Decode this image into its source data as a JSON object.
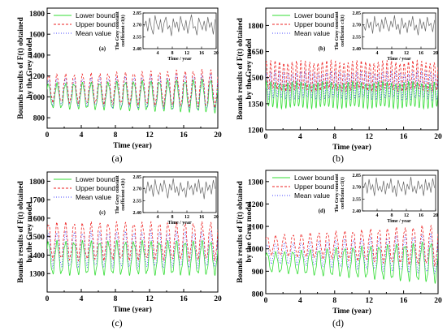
{
  "chart_data": [
    {
      "type": "line",
      "panel_caption": "(a)",
      "panel_tag": "(a)",
      "ylabel_lines": [
        "Bounds results of F(t) obtained",
        "by the Grey model"
      ],
      "xlabel": "Time (year)",
      "xlim": [
        0,
        20
      ],
      "xticks": [
        "0",
        "4",
        "8",
        "12",
        "16",
        "20"
      ],
      "ylim": [
        700,
        1850
      ],
      "yticks": [
        "800",
        "1000",
        "1200",
        "1400",
        "1600",
        "1800"
      ],
      "grid": false,
      "legend_position": "top-left",
      "periods": 20,
      "series": [
        {
          "name": "Lower bound",
          "color": "#33dd33",
          "dash": "",
          "baseline": 1010,
          "amplitude": 110,
          "growth": 0.5
        },
        {
          "name": "Upper bound",
          "color": "#ee2222",
          "dash": "3,2",
          "baseline": 1080,
          "amplitude": 125,
          "growth": 0.5
        },
        {
          "name": "Mean value",
          "color": "#4444ff",
          "dash": "1,2",
          "baseline": 1045,
          "amplitude": 118,
          "growth": 0.5
        }
      ],
      "inset": {
        "xlabel": "Time / year",
        "ylabel_lines": [
          "The Grey constant",
          "coefficient c1(t)"
        ],
        "xticks": [
          "4",
          "8",
          "12",
          "16",
          "20"
        ],
        "yticks": [
          "2.40",
          "2.55",
          "2.70",
          "2.85"
        ],
        "ylim": [
          2.4,
          2.85
        ],
        "xlim": [
          0,
          20
        ],
        "values": [
          2.68,
          2.75,
          2.62,
          2.79,
          2.66,
          2.58,
          2.82,
          2.71,
          2.64,
          2.77,
          2.6,
          2.73,
          2.8,
          2.65,
          2.69,
          2.56,
          2.78,
          2.67,
          2.74,
          2.61,
          2.81,
          2.7,
          2.63,
          2.76,
          2.59,
          2.72,
          2.83,
          2.66,
          2.68,
          2.57,
          2.79,
          2.71,
          2.64,
          2.75,
          2.62,
          2.8,
          2.67,
          2.73,
          2.58,
          2.77
        ]
      }
    },
    {
      "type": "line",
      "panel_caption": "(b)",
      "panel_tag": "(b)",
      "ylabel_lines": [
        "Bounds results of F(t) obtained",
        "by the Grey model"
      ],
      "xlabel": "Time (year)",
      "xlim": [
        0,
        20
      ],
      "xticks": [
        "0",
        "4",
        "8",
        "12",
        "16",
        "20"
      ],
      "ylim": [
        1200,
        1900
      ],
      "yticks": [
        "1200",
        "1350",
        "1500",
        "1650",
        "1800"
      ],
      "grid": false,
      "legend_position": "top-left",
      "periods": 40,
      "series": [
        {
          "name": "Lower bound",
          "color": "#33dd33",
          "dash": "",
          "baseline": 1400,
          "amplitude": 70,
          "growth": 0.0
        },
        {
          "name": "Upper bound",
          "color": "#ee2222",
          "dash": "3,2",
          "baseline": 1510,
          "amplitude": 80,
          "growth": 0.0
        },
        {
          "name": "Mean value",
          "color": "#4444ff",
          "dash": "1,2",
          "baseline": 1455,
          "amplitude": 75,
          "growth": 0.0
        }
      ],
      "inset": {
        "xlabel": "Time / year",
        "ylabel_lines": [
          "The Grey constant",
          "coefficient c1(t)"
        ],
        "xticks": [
          "4",
          "8",
          "12",
          "16",
          "20"
        ],
        "yticks": [
          "2.40",
          "2.55",
          "2.70",
          "2.85"
        ],
        "ylim": [
          2.4,
          2.85
        ],
        "xlim": [
          0,
          20
        ],
        "values": [
          2.7,
          2.63,
          2.78,
          2.66,
          2.74,
          2.59,
          2.81,
          2.68,
          2.72,
          2.61,
          2.77,
          2.65,
          2.8,
          2.69,
          2.62,
          2.75,
          2.67,
          2.82,
          2.64,
          2.71,
          2.58,
          2.79,
          2.66,
          2.73,
          2.6,
          2.76,
          2.68,
          2.81,
          2.63,
          2.7,
          2.57,
          2.78,
          2.65,
          2.74,
          2.62,
          2.8,
          2.69,
          2.72,
          2.61,
          2.76
        ]
      }
    },
    {
      "type": "line",
      "panel_caption": "(c)",
      "panel_tag": "(c)",
      "ylabel_lines": [
        "Bounds results of F(t) obtained",
        "by the Grey model"
      ],
      "xlabel": "Time (year)",
      "xlim": [
        0,
        20
      ],
      "xticks": [
        "0",
        "4",
        "8",
        "12",
        "16",
        "20"
      ],
      "ylim": [
        1200,
        1850
      ],
      "yticks": [
        "1300",
        "1400",
        "1500",
        "1600",
        "1700",
        "1800"
      ],
      "grid": false,
      "legend_position": "top-left",
      "periods": 20,
      "series": [
        {
          "name": "Lower bound",
          "color": "#33dd33",
          "dash": "",
          "baseline": 1385,
          "amplitude": 85,
          "growth": 0.0
        },
        {
          "name": "Upper bound",
          "color": "#ee2222",
          "dash": "3,2",
          "baseline": 1475,
          "amplitude": 95,
          "growth": 0.0
        },
        {
          "name": "Mean value",
          "color": "#4444ff",
          "dash": "1,2",
          "baseline": 1430,
          "amplitude": 90,
          "growth": 0.0
        }
      ],
      "inset": {
        "xlabel": "Time / year",
        "ylabel_lines": [
          "The Grey constant",
          "coefficient c1(t)"
        ],
        "xticks": [
          "4",
          "8",
          "12",
          "16",
          "20"
        ],
        "yticks": [
          "2.40",
          "2.55",
          "2.70",
          "2.85"
        ],
        "ylim": [
          2.4,
          2.85
        ],
        "xlim": [
          0,
          20
        ],
        "values": [
          2.72,
          2.64,
          2.79,
          2.67,
          2.75,
          2.6,
          2.82,
          2.69,
          2.63,
          2.77,
          2.66,
          2.81,
          2.7,
          2.58,
          2.76,
          2.68,
          2.83,
          2.65,
          2.73,
          2.61,
          2.78,
          2.67,
          2.71,
          2.59,
          2.8,
          2.69,
          2.74,
          2.62,
          2.77,
          2.66,
          2.82,
          2.64,
          2.72,
          2.57,
          2.79,
          2.68,
          2.75,
          2.63,
          2.81,
          2.7
        ]
      }
    },
    {
      "type": "line",
      "panel_caption": "(d)",
      "panel_tag": "(d)",
      "ylabel_lines": [
        "Bounds results of F(t) obtained",
        "by the Grey model"
      ],
      "xlabel": "Time (year)",
      "xlim": [
        0,
        20
      ],
      "xticks": [
        "0",
        "4",
        "8",
        "12",
        "16",
        "20"
      ],
      "ylim": [
        800,
        1350
      ],
      "yticks": [
        "800",
        "900",
        "1000",
        "1100",
        "1200",
        "1300"
      ],
      "grid": false,
      "legend_position": "top-left",
      "periods": 20,
      "series": [
        {
          "name": "Lower bound",
          "color": "#33dd33",
          "dash": "",
          "baseline": 940,
          "amplitude": 40,
          "growth": 1.6
        },
        {
          "name": "Upper bound",
          "color": "#ee2222",
          "dash": "3,2",
          "baseline": 1015,
          "amplitude": 40,
          "growth": 1.6
        },
        {
          "name": "Mean value",
          "color": "#4444ff",
          "dash": "1,2",
          "baseline": 978,
          "amplitude": 40,
          "growth": 1.6
        }
      ],
      "inset": {
        "xlabel": "Time / year",
        "ylabel_lines": [
          "The Grey constant",
          "coefficient c1(t)"
        ],
        "xticks": [
          "4",
          "8",
          "12",
          "16",
          "20"
        ],
        "yticks": [
          "2.40",
          "2.55",
          "2.70",
          "2.85"
        ],
        "ylim": [
          2.4,
          2.85
        ],
        "xlim": [
          0,
          20
        ],
        "values": [
          2.69,
          2.76,
          2.62,
          2.8,
          2.67,
          2.73,
          2.59,
          2.82,
          2.66,
          2.71,
          2.64,
          2.78,
          2.61,
          2.75,
          2.68,
          2.81,
          2.63,
          2.72,
          2.58,
          2.79,
          2.7,
          2.65,
          2.77,
          2.6,
          2.74,
          2.67,
          2.83,
          2.64,
          2.71,
          2.62,
          2.78,
          2.68,
          2.73,
          2.59,
          2.8,
          2.66,
          2.76,
          2.63,
          2.81,
          2.69
        ]
      }
    }
  ]
}
